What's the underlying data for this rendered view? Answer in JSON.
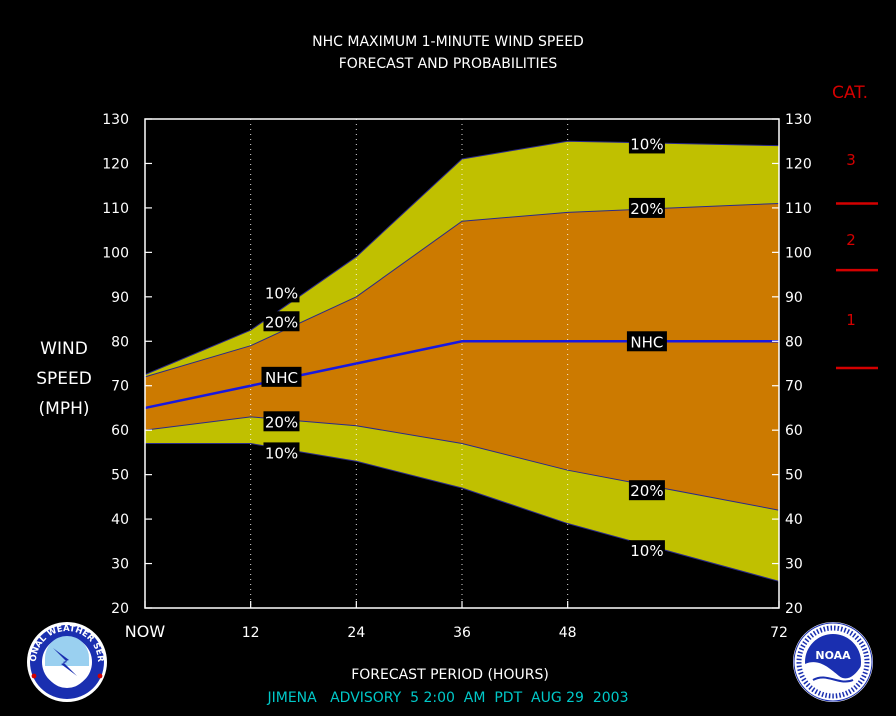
{
  "chart_data": {
    "type": "area",
    "title": "NHC MAXIMUM 1-MINUTE WIND SPEED",
    "subtitle": "FORECAST AND PROBABILITIES",
    "xlabel": "FORECAST PERIOD (HOURS)",
    "ylabel": [
      "WIND",
      "SPEED",
      "(MPH)"
    ],
    "footer": "JIMENA   ADVISORY  5 2:00  AM  PDT  AUG 29  2003",
    "xlim": [
      0,
      72
    ],
    "ylim": [
      20,
      130
    ],
    "x_ticks": [
      0,
      12,
      24,
      36,
      48,
      72
    ],
    "x_tick_labels": [
      "NOW",
      "12",
      "24",
      "36",
      "48",
      "72"
    ],
    "y_ticks": [
      20,
      30,
      40,
      50,
      60,
      70,
      80,
      90,
      100,
      110,
      120,
      130
    ],
    "grid": "vertical-dotted",
    "series": [
      {
        "name": "10%",
        "role": "upper",
        "x": [
          0,
          12,
          24,
          36,
          48,
          72
        ],
        "values": [
          72.5,
          82.5,
          99,
          121,
          125,
          124
        ]
      },
      {
        "name": "20%",
        "role": "upper",
        "x": [
          0,
          12,
          24,
          36,
          48,
          72
        ],
        "values": [
          72,
          79,
          90,
          107,
          109,
          111
        ]
      },
      {
        "name": "NHC",
        "role": "forecast",
        "x": [
          0,
          12,
          24,
          36,
          48,
          72
        ],
        "values": [
          65,
          70,
          75,
          80,
          80,
          80
        ]
      },
      {
        "name": "20%",
        "role": "lower",
        "x": [
          0,
          12,
          24,
          36,
          48,
          72
        ],
        "values": [
          60,
          63,
          61,
          57,
          51,
          42
        ]
      },
      {
        "name": "10%",
        "role": "lower",
        "x": [
          0,
          12,
          24,
          36,
          48,
          72
        ],
        "values": [
          57,
          57,
          53,
          47,
          39,
          26
        ]
      }
    ],
    "line_labels": [
      {
        "text": "10%",
        "x": 15.5,
        "y": 91
      },
      {
        "text": "20%",
        "x": 15.5,
        "y": 84.5
      },
      {
        "text": "NHC",
        "x": 15.5,
        "y": 72
      },
      {
        "text": "20%",
        "x": 15.5,
        "y": 62
      },
      {
        "text": "10%",
        "x": 15.5,
        "y": 55
      },
      {
        "text": "10%",
        "x": 57,
        "y": 124.5
      },
      {
        "text": "20%",
        "x": 57,
        "y": 110
      },
      {
        "text": "NHC",
        "x": 57,
        "y": 80
      },
      {
        "text": "20%",
        "x": 57,
        "y": 46.5
      },
      {
        "text": "10%",
        "x": 57,
        "y": 33
      }
    ],
    "category_scale": {
      "title": "CAT.",
      "bounds": [
        74,
        96,
        111
      ],
      "labels": [
        {
          "text": "1",
          "y": 85
        },
        {
          "text": "2",
          "y": 103
        },
        {
          "text": "3",
          "y": 121
        }
      ]
    },
    "colors": {
      "background": "#000000",
      "outer_band": "#c0c000",
      "inner_band": "#cc7a00",
      "nhc_line": "#1818e0",
      "category": "#d40000",
      "footer_text": "#00c8c8",
      "text": "#ffffff"
    }
  },
  "logos": [
    {
      "name": "nws-logo",
      "text": "NATIONAL WEATHER SERVICE"
    },
    {
      "name": "noaa-logo",
      "text": "NOAA"
    }
  ]
}
